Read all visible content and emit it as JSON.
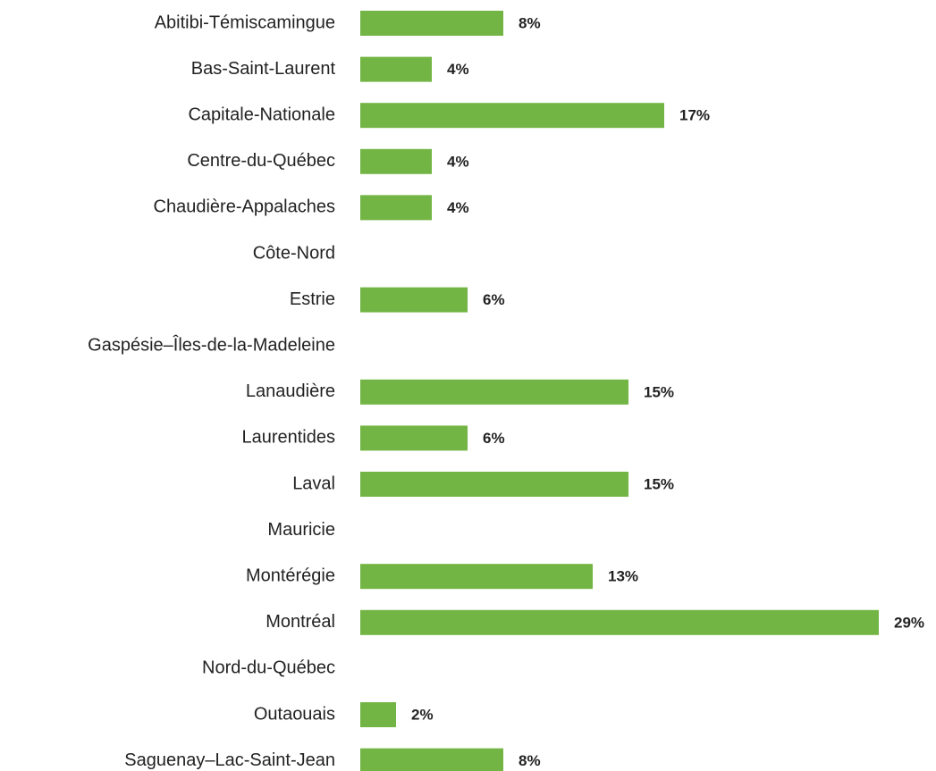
{
  "chart_data": {
    "type": "bar",
    "orientation": "horizontal",
    "color": "#72b544",
    "categories": [
      "Abitibi-Témiscamingue",
      "Bas-Saint-Laurent",
      "Capitale-Nationale",
      "Centre-du-Québec",
      "Chaudière-Appalaches",
      "Côte-Nord",
      "Estrie",
      "Gaspésie–Îles-de-la-Madeleine",
      "Lanaudière",
      "Laurentides",
      "Laval",
      "Mauricie",
      "Montérégie",
      "Montréal",
      "Nord-du-Québec",
      "Outaouais",
      "Saguenay–Lac-Saint-Jean"
    ],
    "values": [
      8,
      4,
      17,
      4,
      4,
      null,
      6,
      null,
      15,
      6,
      15,
      null,
      13,
      29,
      null,
      2,
      8
    ],
    "value_labels": [
      "8%",
      "4%",
      "17%",
      "4%",
      "4%",
      null,
      "6%",
      null,
      "15%",
      "6%",
      "15%",
      null,
      "13%",
      "29%",
      null,
      "2%",
      "8%"
    ]
  }
}
